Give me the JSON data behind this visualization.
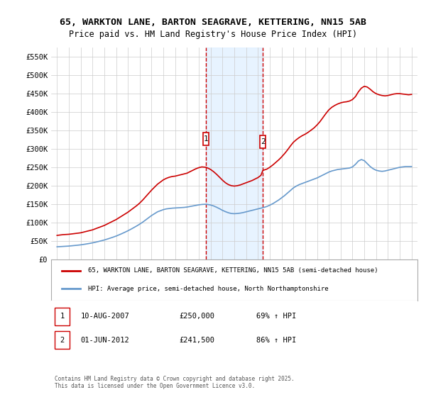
{
  "title": "65, WARKTON LANE, BARTON SEAGRAVE, KETTERING, NN15 5AB",
  "subtitle": "Price paid vs. HM Land Registry's House Price Index (HPI)",
  "legend_line1": "65, WARKTON LANE, BARTON SEAGRAVE, KETTERING, NN15 5AB (semi-detached house)",
  "legend_line2": "HPI: Average price, semi-detached house, North Northamptonshire",
  "footnote": "Contains HM Land Registry data © Crown copyright and database right 2025.\nThis data is licensed under the Open Government Licence v3.0.",
  "table": [
    {
      "label": "1",
      "date": "10-AUG-2007",
      "price": "£250,000",
      "hpi": "69% ↑ HPI"
    },
    {
      "label": "2",
      "date": "01-JUN-2012",
      "price": "£241,500",
      "hpi": "86% ↑ HPI"
    }
  ],
  "event1_x": 2007.608,
  "event2_x": 2012.416,
  "event1_y": 250000,
  "event2_y": 241500,
  "red_line_color": "#cc0000",
  "blue_line_color": "#6699cc",
  "shade_color": "#ddeeff",
  "grid_color": "#cccccc",
  "background_color": "#ffffff",
  "ylim": [
    0,
    575000
  ],
  "xlim": [
    1994.5,
    2025.5
  ],
  "yticks": [
    0,
    50000,
    100000,
    150000,
    200000,
    250000,
    300000,
    350000,
    400000,
    450000,
    500000,
    550000
  ],
  "ytick_labels": [
    "£0",
    "£50K",
    "£100K",
    "£150K",
    "£200K",
    "£250K",
    "£300K",
    "£350K",
    "£400K",
    "£450K",
    "£500K",
    "£550K"
  ],
  "xticks": [
    1995,
    1996,
    1997,
    1998,
    1999,
    2000,
    2001,
    2002,
    2003,
    2004,
    2005,
    2006,
    2007,
    2008,
    2009,
    2010,
    2011,
    2012,
    2013,
    2014,
    2015,
    2016,
    2017,
    2018,
    2019,
    2020,
    2021,
    2022,
    2023,
    2024,
    2025
  ],
  "red_x": [
    1995.0,
    1995.25,
    1995.5,
    1995.75,
    1996.0,
    1996.25,
    1996.5,
    1996.75,
    1997.0,
    1997.25,
    1997.5,
    1997.75,
    1998.0,
    1998.25,
    1998.5,
    1998.75,
    1999.0,
    1999.25,
    1999.5,
    1999.75,
    2000.0,
    2000.25,
    2000.5,
    2000.75,
    2001.0,
    2001.25,
    2001.5,
    2001.75,
    2002.0,
    2002.25,
    2002.5,
    2002.75,
    2003.0,
    2003.25,
    2003.5,
    2003.75,
    2004.0,
    2004.25,
    2004.5,
    2004.75,
    2005.0,
    2005.25,
    2005.5,
    2005.75,
    2006.0,
    2006.25,
    2006.5,
    2006.75,
    2007.0,
    2007.25,
    2007.608,
    2007.75,
    2008.0,
    2008.25,
    2008.5,
    2008.75,
    2009.0,
    2009.25,
    2009.5,
    2009.75,
    2010.0,
    2010.25,
    2010.5,
    2010.75,
    2011.0,
    2011.25,
    2011.5,
    2011.75,
    2012.0,
    2012.25,
    2012.416,
    2012.75,
    2013.0,
    2013.25,
    2013.5,
    2013.75,
    2014.0,
    2014.25,
    2014.5,
    2014.75,
    2015.0,
    2015.25,
    2015.5,
    2015.75,
    2016.0,
    2016.25,
    2016.5,
    2016.75,
    2017.0,
    2017.25,
    2017.5,
    2017.75,
    2018.0,
    2018.25,
    2018.5,
    2018.75,
    2019.0,
    2019.25,
    2019.5,
    2019.75,
    2020.0,
    2020.25,
    2020.5,
    2020.75,
    2021.0,
    2021.25,
    2021.5,
    2021.75,
    2022.0,
    2022.25,
    2022.5,
    2022.75,
    2023.0,
    2023.25,
    2023.5,
    2023.75,
    2024.0,
    2024.25,
    2024.5,
    2024.75,
    2025.0
  ],
  "red_y": [
    65000,
    66000,
    67000,
    67500,
    68000,
    69000,
    70000,
    71000,
    72000,
    74000,
    76000,
    78000,
    80000,
    83000,
    86000,
    89000,
    92000,
    96000,
    100000,
    104000,
    108000,
    113000,
    118000,
    123000,
    128000,
    134000,
    140000,
    146000,
    153000,
    161000,
    170000,
    179000,
    188000,
    196000,
    204000,
    210000,
    216000,
    220000,
    223000,
    225000,
    226000,
    228000,
    230000,
    232000,
    234000,
    238000,
    242000,
    246000,
    249000,
    251000,
    250000,
    248000,
    244000,
    238000,
    231000,
    223000,
    215000,
    208000,
    203000,
    200000,
    199000,
    200000,
    202000,
    205000,
    208000,
    211000,
    214000,
    218000,
    222000,
    228000,
    241500,
    245000,
    250000,
    256000,
    263000,
    270000,
    278000,
    287000,
    297000,
    308000,
    318000,
    325000,
    331000,
    336000,
    340000,
    345000,
    351000,
    357000,
    365000,
    374000,
    385000,
    396000,
    406000,
    413000,
    418000,
    422000,
    425000,
    427000,
    428000,
    430000,
    434000,
    442000,
    455000,
    465000,
    470000,
    468000,
    462000,
    455000,
    450000,
    447000,
    445000,
    444000,
    445000,
    447000,
    449000,
    450000,
    450000,
    449000,
    448000,
    447000,
    448000
  ],
  "blue_x": [
    1995.0,
    1995.25,
    1995.5,
    1995.75,
    1996.0,
    1996.25,
    1996.5,
    1996.75,
    1997.0,
    1997.25,
    1997.5,
    1997.75,
    1998.0,
    1998.25,
    1998.5,
    1998.75,
    1999.0,
    1999.25,
    1999.5,
    1999.75,
    2000.0,
    2000.25,
    2000.5,
    2000.75,
    2001.0,
    2001.25,
    2001.5,
    2001.75,
    2002.0,
    2002.25,
    2002.5,
    2002.75,
    2003.0,
    2003.25,
    2003.5,
    2003.75,
    2004.0,
    2004.25,
    2004.5,
    2004.75,
    2005.0,
    2005.25,
    2005.5,
    2005.75,
    2006.0,
    2006.25,
    2006.5,
    2006.75,
    2007.0,
    2007.25,
    2007.5,
    2007.75,
    2008.0,
    2008.25,
    2008.5,
    2008.75,
    2009.0,
    2009.25,
    2009.5,
    2009.75,
    2010.0,
    2010.25,
    2010.5,
    2010.75,
    2011.0,
    2011.25,
    2011.5,
    2011.75,
    2012.0,
    2012.25,
    2012.5,
    2012.75,
    2013.0,
    2013.25,
    2013.5,
    2013.75,
    2014.0,
    2014.25,
    2014.5,
    2014.75,
    2015.0,
    2015.25,
    2015.5,
    2015.75,
    2016.0,
    2016.25,
    2016.5,
    2016.75,
    2017.0,
    2017.25,
    2017.5,
    2017.75,
    2018.0,
    2018.25,
    2018.5,
    2018.75,
    2019.0,
    2019.25,
    2019.5,
    2019.75,
    2020.0,
    2020.25,
    2020.5,
    2020.75,
    2021.0,
    2021.25,
    2021.5,
    2021.75,
    2022.0,
    2022.25,
    2022.5,
    2022.75,
    2023.0,
    2023.25,
    2023.5,
    2023.75,
    2024.0,
    2024.25,
    2024.5,
    2024.75,
    2025.0
  ],
  "blue_y": [
    34000,
    34500,
    35000,
    35500,
    36000,
    36800,
    37600,
    38400,
    39300,
    40500,
    41800,
    43200,
    44700,
    46500,
    48400,
    50400,
    52500,
    55000,
    57600,
    60300,
    63200,
    66500,
    70000,
    73700,
    77600,
    81800,
    86200,
    90800,
    95700,
    101000,
    107000,
    113000,
    119000,
    124000,
    129000,
    132000,
    135000,
    137000,
    138000,
    139000,
    139500,
    140000,
    140500,
    141000,
    142000,
    143500,
    145000,
    146500,
    148000,
    149000,
    149500,
    149000,
    147500,
    145000,
    141500,
    137500,
    133000,
    129500,
    126500,
    124500,
    124000,
    124500,
    125500,
    127000,
    129000,
    131000,
    133000,
    135000,
    137000,
    139000,
    141000,
    143500,
    147000,
    151000,
    156000,
    161000,
    167000,
    173000,
    180000,
    187000,
    194000,
    199000,
    203000,
    206000,
    209000,
    212000,
    215000,
    218000,
    221000,
    225000,
    229000,
    233000,
    237000,
    240000,
    242000,
    244000,
    245000,
    246000,
    247000,
    248000,
    251000,
    258000,
    267000,
    271000,
    268000,
    260000,
    252000,
    246000,
    242000,
    240000,
    239000,
    240000,
    242000,
    244000,
    246000,
    248000,
    250000,
    251000,
    252000,
    252000,
    252000
  ]
}
